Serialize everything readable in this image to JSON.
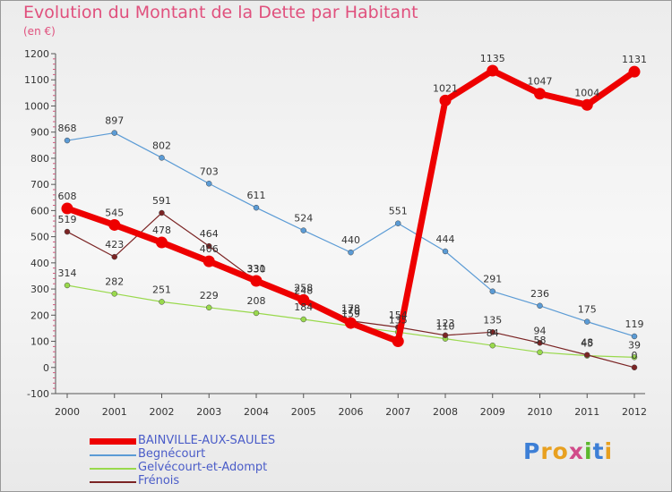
{
  "title": "Evolution du Montant de la Dette par Habitant",
  "subtitle": "(en €)",
  "logo": {
    "text": "Proxiti",
    "colors": [
      "#3d7fd6",
      "#e8a020",
      "#e8a020",
      "#d14b8a",
      "#5cb82e",
      "#3d7fd6",
      "#e8a020"
    ]
  },
  "chart_data": {
    "type": "line",
    "title": "Evolution du Montant de la Dette par Habitant",
    "ylabel": "(en €)",
    "x": [
      "2000",
      "2001",
      "2002",
      "2003",
      "2004",
      "2005",
      "2006",
      "2007",
      "2008",
      "2009",
      "2010",
      "2011",
      "2012"
    ],
    "ylim": [
      -100,
      1200
    ],
    "yticks": [
      "-100",
      "0",
      "100",
      "200",
      "300",
      "400",
      "500",
      "600",
      "700",
      "800",
      "900",
      "1000",
      "1100",
      "1200"
    ],
    "grid": false,
    "legend_position": "bottom-left",
    "series": [
      {
        "name": "Begnécourt",
        "color": "#5b9bd5",
        "values": [
          868,
          897,
          802,
          703,
          611,
          524,
          440,
          551,
          444,
          291,
          236,
          175,
          119
        ],
        "labels": [
          "868",
          "897",
          "802",
          "703",
          "611",
          "524",
          "440",
          "551",
          "444",
          "291",
          "236",
          "175",
          "119"
        ]
      },
      {
        "name": "Gelvécourt-et-Adompt",
        "color": "#99d94c",
        "values": [
          314,
          282,
          251,
          229,
          208,
          184,
          159,
          135,
          110,
          84,
          58,
          45,
          39
        ],
        "labels": [
          "314",
          "282",
          "251",
          "229",
          "208",
          "184",
          "159",
          "135",
          "110",
          "84",
          "58",
          "45",
          "39"
        ]
      },
      {
        "name": "Frénois",
        "color": "#7b2424",
        "values": [
          519,
          423,
          591,
          464,
          330,
          248,
          178,
          154,
          123,
          135,
          94,
          48,
          0
        ],
        "labels": [
          "519",
          "423",
          "591",
          "464",
          "330",
          "248",
          "178",
          "154",
          "123",
          "135",
          "94",
          "48",
          "0"
        ]
      },
      {
        "name": "BAINVILLE-AUX-SAULES",
        "color": "#ee0000",
        "values": [
          608,
          545,
          478,
          406,
          331,
          258,
          170,
          100,
          1021,
          1135,
          1047,
          1004,
          1131
        ],
        "labels": [
          "608",
          "545",
          "478",
          "406",
          "331",
          "258",
          "170",
          "",
          "1021",
          "1135",
          "1047",
          "1004",
          "1131"
        ]
      }
    ],
    "legend": [
      "BAINVILLE-AUX-SAULES",
      "Begnécourt",
      "Gelvécourt-et-Adompt",
      "Frénois"
    ]
  }
}
